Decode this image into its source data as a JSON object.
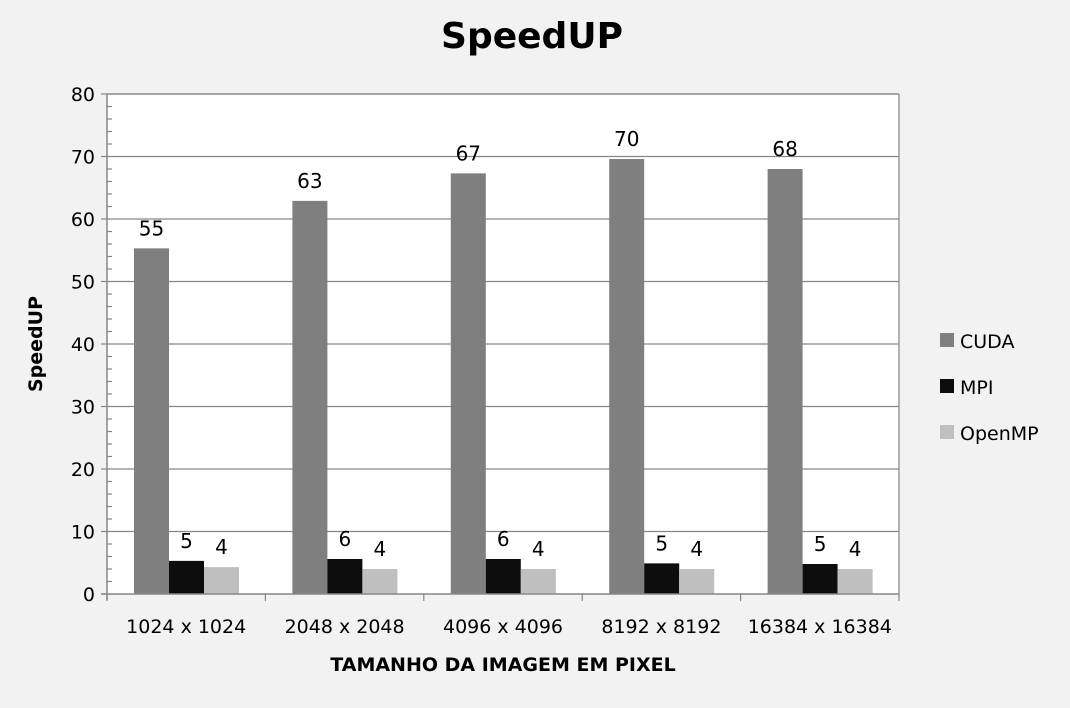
{
  "chart_data": {
    "type": "bar",
    "title": "SpeedUP",
    "xlabel": "TAMANHO DA IMAGEM EM PIXEL",
    "ylabel": "SpeedUP",
    "ylim": [
      0,
      80
    ],
    "yticks": [
      0,
      10,
      20,
      30,
      40,
      50,
      60,
      70,
      80
    ],
    "grid": true,
    "legend_position": "right",
    "categories": [
      "1024 x 1024",
      "2048 x 2048",
      "4096 x 4096",
      "8192 x 8192",
      "16384 x 16384"
    ],
    "series": [
      {
        "name": "CUDA",
        "color": "#7f7f7f",
        "values": [
          55.3,
          62.9,
          67.3,
          69.6,
          68.0
        ],
        "labels": [
          "55",
          "63",
          "67",
          "70",
          "68"
        ]
      },
      {
        "name": "MPI",
        "color": "#0d0d0d",
        "values": [
          5.3,
          5.6,
          5.6,
          4.9,
          4.8
        ],
        "labels": [
          "5",
          "6",
          "6",
          "5",
          "5"
        ]
      },
      {
        "name": "OpenMP",
        "color": "#bfbfbf",
        "values": [
          4.3,
          4.0,
          4.0,
          4.0,
          4.0
        ],
        "labels": [
          "4",
          "4",
          "4",
          "4",
          "4"
        ]
      }
    ]
  }
}
